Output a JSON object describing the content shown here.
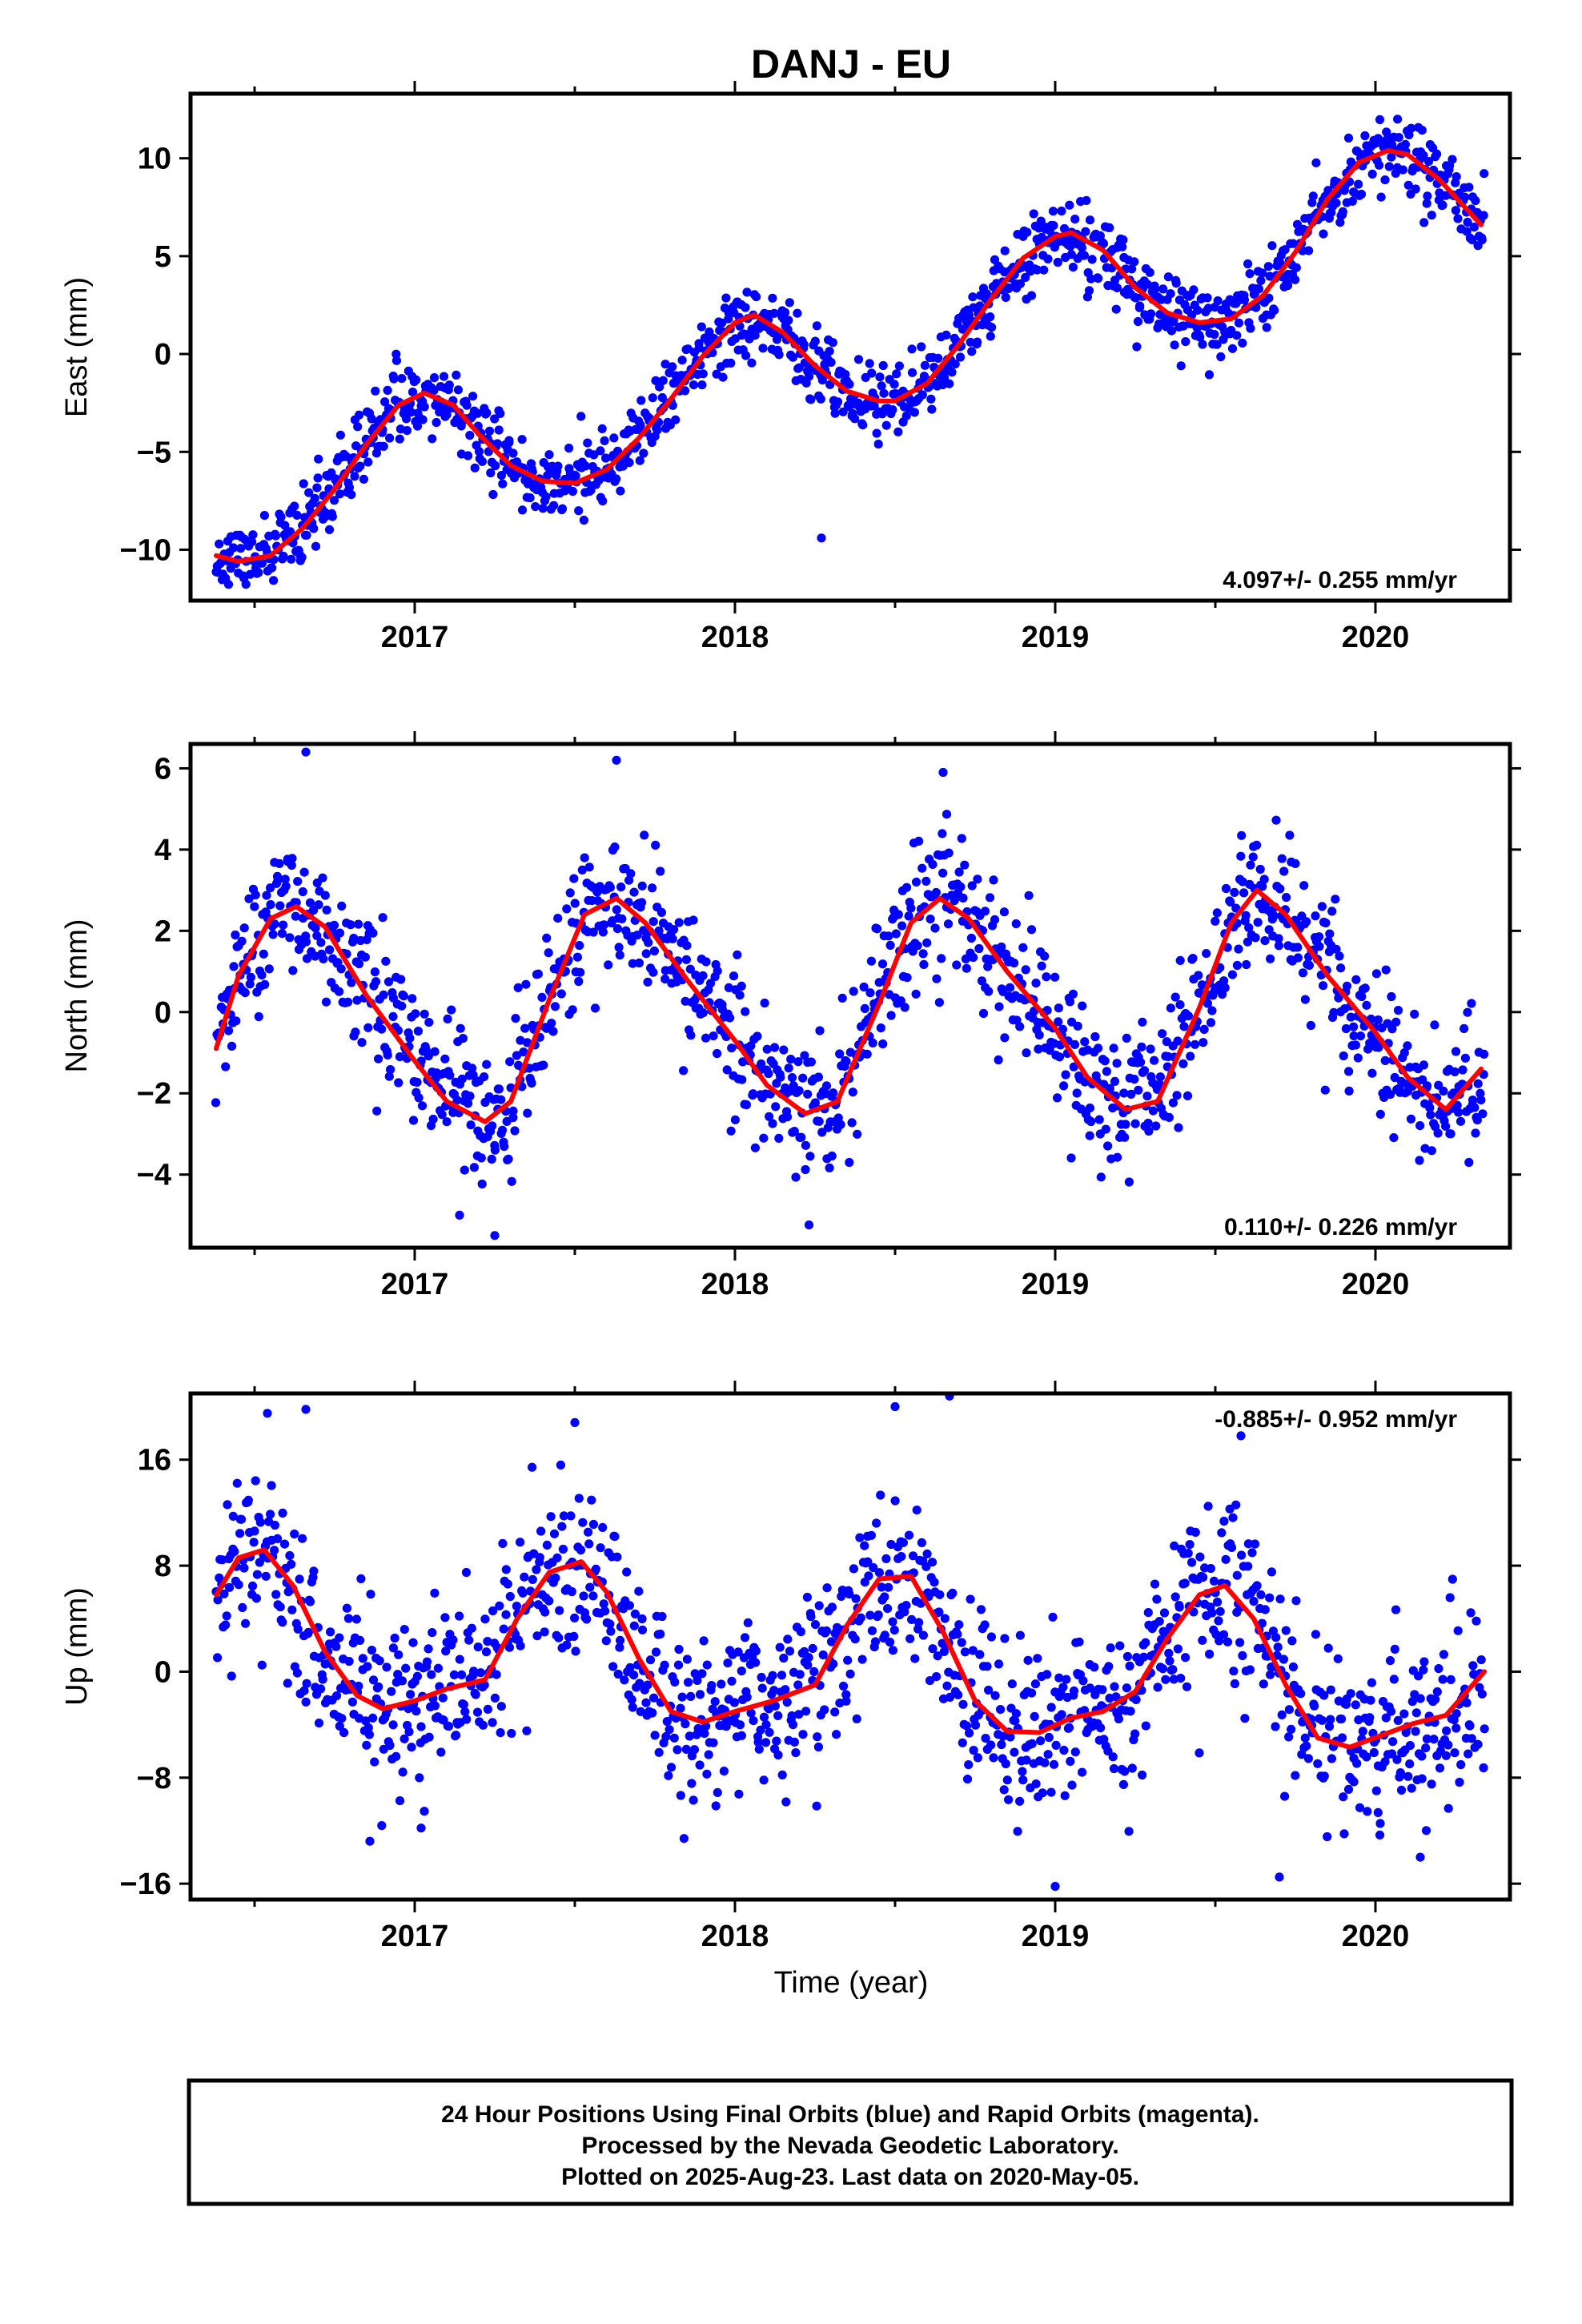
{
  "colors": {
    "final_orbits": "#0000ff",
    "model_fit": "#ff0000",
    "frame": "#000000",
    "background": "#ffffff"
  },
  "chart_data": [
    {
      "type": "scatter",
      "title": "DANJ - EU",
      "ylabel": "East (mm)",
      "xlabel": "",
      "xlim": [
        2016.3,
        2020.42
      ],
      "ylim": [
        -12.6,
        13.3
      ],
      "yticks": [
        -10,
        -5,
        0,
        5,
        10
      ],
      "ytick_labels": [
        "−10",
        "−5",
        "0",
        "5",
        "10"
      ],
      "xticks": [
        2017,
        2018,
        2019,
        2020
      ],
      "xtick_labels": [
        "2017",
        "2018",
        "2019",
        "2020"
      ],
      "rate_annotation": "4.097+/- 0.255 mm/yr",
      "rate_position": "bottom-right",
      "model_fit": {
        "name": "model",
        "x": [
          2016.38,
          2016.45,
          2016.55,
          2016.65,
          2016.75,
          2016.85,
          2016.95,
          2017.03,
          2017.12,
          2017.2,
          2017.3,
          2017.4,
          2017.5,
          2017.6,
          2017.7,
          2017.8,
          2017.9,
          2018.0,
          2018.06,
          2018.15,
          2018.25,
          2018.35,
          2018.45,
          2018.5,
          2018.6,
          2018.7,
          2018.8,
          2018.9,
          2019.0,
          2019.05,
          2019.15,
          2019.25,
          2019.35,
          2019.45,
          2019.55,
          2019.65,
          2019.75,
          2019.85,
          2019.95,
          2020.04,
          2020.1,
          2020.2,
          2020.33
        ],
        "y": [
          -10.3,
          -10.6,
          -10.3,
          -8.9,
          -6.9,
          -4.6,
          -2.6,
          -2.0,
          -2.6,
          -4.1,
          -5.7,
          -6.5,
          -6.6,
          -5.9,
          -4.3,
          -2.3,
          -0.1,
          1.6,
          2.0,
          1.1,
          -0.6,
          -1.9,
          -2.4,
          -2.4,
          -1.5,
          0.5,
          2.8,
          4.9,
          6.0,
          6.2,
          5.3,
          3.4,
          2.1,
          1.6,
          1.8,
          3.0,
          5.2,
          7.9,
          9.8,
          10.4,
          10.2,
          8.9,
          6.6
        ]
      },
      "seasonal": {
        "trend_mm_yr": 4.097,
        "amp1": 4.3,
        "amp2": 0.5,
        "noise_sd": 0.95,
        "x_start": 2016.38,
        "x_end": 2020.34,
        "n": 1250,
        "seed": 11
      },
      "outliers": [
        [
          2018.27,
          -9.4
        ]
      ]
    },
    {
      "type": "scatter",
      "title": "",
      "ylabel": "North (mm)",
      "xlabel": "",
      "xlim": [
        2016.3,
        2020.42
      ],
      "ylim": [
        -5.8,
        6.6
      ],
      "yticks": [
        -4,
        -2,
        0,
        2,
        4,
        6
      ],
      "ytick_labels": [
        "−4",
        "−2",
        "0",
        "2",
        "4",
        "6"
      ],
      "xticks": [
        2017,
        2018,
        2019,
        2020
      ],
      "xtick_labels": [
        "2017",
        "2018",
        "2019",
        "2020"
      ],
      "rate_annotation": "0.110+/- 0.226 mm/yr",
      "rate_position": "bottom-right",
      "model_fit": {
        "name": "model",
        "x": [
          2016.38,
          2016.45,
          2016.55,
          2016.63,
          2016.72,
          2016.85,
          2017.0,
          2017.1,
          2017.22,
          2017.3,
          2017.42,
          2017.53,
          2017.63,
          2017.72,
          2017.85,
          2018.0,
          2018.1,
          2018.22,
          2018.32,
          2018.45,
          2018.55,
          2018.64,
          2018.73,
          2018.85,
          2019.0,
          2019.1,
          2019.22,
          2019.32,
          2019.45,
          2019.55,
          2019.63,
          2019.72,
          2019.85,
          2020.0,
          2020.1,
          2020.22,
          2020.33
        ],
        "y": [
          -0.9,
          0.9,
          2.3,
          2.6,
          2.1,
          0.4,
          -1.2,
          -2.2,
          -2.7,
          -2.2,
          0.3,
          2.4,
          2.8,
          2.2,
          0.8,
          -0.7,
          -1.8,
          -2.5,
          -2.2,
          0.2,
          2.2,
          2.8,
          2.3,
          1.0,
          -0.4,
          -1.6,
          -2.4,
          -2.2,
          0.1,
          2.2,
          3.0,
          2.4,
          0.9,
          -0.5,
          -1.6,
          -2.4,
          -1.4
        ]
      },
      "seasonal": {
        "trend_mm_yr": 0.11,
        "amp1": 2.4,
        "amp2": 0.7,
        "noise_sd": 0.85,
        "x_start": 2016.38,
        "x_end": 2020.34,
        "n": 1250,
        "seed": 23
      },
      "outliers": [
        [
          2016.66,
          6.4
        ],
        [
          2017.63,
          6.2
        ],
        [
          2018.65,
          5.9
        ],
        [
          2017.25,
          -5.5
        ],
        [
          2017.14,
          -5.0
        ]
      ]
    },
    {
      "type": "scatter",
      "title": "",
      "ylabel": "Up (mm)",
      "xlabel": "Time (year)",
      "xlim": [
        2016.3,
        2020.42
      ],
      "ylim": [
        -17.2,
        21.0
      ],
      "yticks": [
        -16,
        -8,
        0,
        8,
        16
      ],
      "ytick_labels": [
        "−16",
        "−8",
        "0",
        "8",
        "16"
      ],
      "xticks": [
        2017,
        2018,
        2019,
        2020
      ],
      "xtick_labels": [
        "2017",
        "2018",
        "2019",
        "2020"
      ],
      "rate_annotation": "-0.885+/- 0.952 mm/yr",
      "rate_position": "top-right",
      "model_fit": {
        "name": "model",
        "x": [
          2016.38,
          2016.45,
          2016.53,
          2016.62,
          2016.72,
          2016.82,
          2016.9,
          2017.0,
          2017.1,
          2017.22,
          2017.32,
          2017.42,
          2017.52,
          2017.6,
          2017.7,
          2017.8,
          2017.9,
          2018.0,
          2018.12,
          2018.25,
          2018.35,
          2018.45,
          2018.55,
          2018.65,
          2018.75,
          2018.85,
          2018.95,
          2019.05,
          2019.15,
          2019.25,
          2019.35,
          2019.45,
          2019.53,
          2019.62,
          2019.72,
          2019.82,
          2019.92,
          2020.02,
          2020.12,
          2020.22,
          2020.34
        ],
        "y": [
          5.8,
          8.6,
          9.2,
          6.5,
          1.5,
          -1.8,
          -2.8,
          -2.2,
          -1.3,
          -0.6,
          4.0,
          7.5,
          8.3,
          6.0,
          1.0,
          -3.0,
          -3.8,
          -3.0,
          -2.2,
          -1.0,
          3.5,
          7.0,
          7.2,
          3.0,
          -2.2,
          -4.5,
          -4.6,
          -3.5,
          -3.0,
          -1.5,
          2.5,
          5.8,
          6.5,
          4.0,
          -1.0,
          -5.0,
          -5.7,
          -4.8,
          -3.9,
          -3.3,
          0.0
        ]
      },
      "seasonal": {
        "trend_mm_yr": -0.885,
        "amp1": 5.6,
        "amp2": 1.6,
        "noise_sd": 3.2,
        "x_start": 2016.38,
        "x_end": 2020.34,
        "n": 1250,
        "seed": 37
      },
      "outliers": [
        [
          2016.54,
          19.5
        ],
        [
          2016.66,
          19.8
        ],
        [
          2017.5,
          18.8
        ],
        [
          2018.5,
          20.0
        ],
        [
          2018.67,
          20.8
        ],
        [
          2019.58,
          17.8
        ],
        [
          2019.0,
          -16.2
        ],
        [
          2019.7,
          -15.5
        ],
        [
          2020.14,
          -14.0
        ],
        [
          2016.86,
          -12.8
        ],
        [
          2017.02,
          -11.8
        ]
      ]
    }
  ],
  "footer": {
    "line1": "24 Hour Positions Using Final Orbits (blue) and Rapid Orbits (magenta).",
    "line2": "Processed by the Nevada Geodetic Laboratory.",
    "line3": "Plotted on 2025-Aug-23. Last data on 2020-May-05."
  }
}
